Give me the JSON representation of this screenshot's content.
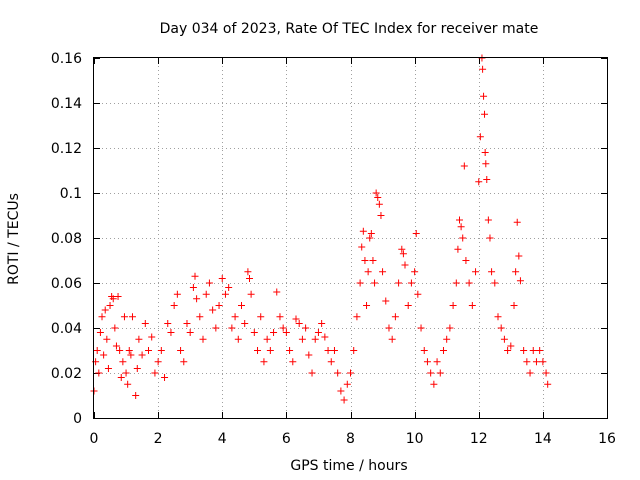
{
  "chart_data": {
    "type": "scatter",
    "title": "Day 034 of 2023, Rate Of TEC Index for receiver mate",
    "xlabel": "GPS time / hours",
    "ylabel": "ROTI / TECUs",
    "xlim": [
      0,
      16
    ],
    "ylim": [
      0,
      0.16
    ],
    "xticks": [
      0,
      2,
      4,
      6,
      8,
      10,
      12,
      14,
      16
    ],
    "yticks": [
      0,
      0.02,
      0.04,
      0.06,
      0.08,
      0.1,
      0.12,
      0.14,
      0.16
    ],
    "grid": true,
    "marker": "plus",
    "color": "#ff0000",
    "series": [
      {
        "name": "ROTI",
        "points": [
          [
            0.0,
            0.012
          ],
          [
            0.05,
            0.025
          ],
          [
            0.1,
            0.03
          ],
          [
            0.15,
            0.02
          ],
          [
            0.2,
            0.038
          ],
          [
            0.25,
            0.045
          ],
          [
            0.3,
            0.028
          ],
          [
            0.35,
            0.048
          ],
          [
            0.4,
            0.035
          ],
          [
            0.45,
            0.022
          ],
          [
            0.5,
            0.05
          ],
          [
            0.55,
            0.054
          ],
          [
            0.6,
            0.053
          ],
          [
            0.65,
            0.04
          ],
          [
            0.7,
            0.032
          ],
          [
            0.75,
            0.054
          ],
          [
            0.8,
            0.03
          ],
          [
            0.85,
            0.018
          ],
          [
            0.9,
            0.025
          ],
          [
            0.95,
            0.045
          ],
          [
            1.0,
            0.02
          ],
          [
            1.05,
            0.015
          ],
          [
            1.1,
            0.03
          ],
          [
            1.15,
            0.028
          ],
          [
            1.2,
            0.045
          ],
          [
            1.3,
            0.01
          ],
          [
            1.35,
            0.022
          ],
          [
            1.4,
            0.035
          ],
          [
            1.5,
            0.028
          ],
          [
            1.6,
            0.042
          ],
          [
            1.7,
            0.03
          ],
          [
            1.8,
            0.036
          ],
          [
            1.9,
            0.02
          ],
          [
            2.0,
            0.025
          ],
          [
            2.1,
            0.03
          ],
          [
            2.2,
            0.018
          ],
          [
            2.3,
            0.042
          ],
          [
            2.4,
            0.038
          ],
          [
            2.5,
            0.05
          ],
          [
            2.6,
            0.055
          ],
          [
            2.7,
            0.03
          ],
          [
            2.8,
            0.025
          ],
          [
            2.9,
            0.042
          ],
          [
            3.0,
            0.038
          ],
          [
            3.1,
            0.058
          ],
          [
            3.15,
            0.063
          ],
          [
            3.2,
            0.053
          ],
          [
            3.3,
            0.045
          ],
          [
            3.4,
            0.035
          ],
          [
            3.5,
            0.055
          ],
          [
            3.6,
            0.06
          ],
          [
            3.7,
            0.048
          ],
          [
            3.8,
            0.04
          ],
          [
            3.9,
            0.05
          ],
          [
            4.0,
            0.062
          ],
          [
            4.1,
            0.055
          ],
          [
            4.2,
            0.058
          ],
          [
            4.3,
            0.04
          ],
          [
            4.4,
            0.045
          ],
          [
            4.5,
            0.035
          ],
          [
            4.6,
            0.05
          ],
          [
            4.7,
            0.042
          ],
          [
            4.8,
            0.065
          ],
          [
            4.85,
            0.062
          ],
          [
            4.9,
            0.055
          ],
          [
            5.0,
            0.038
          ],
          [
            5.1,
            0.03
          ],
          [
            5.2,
            0.045
          ],
          [
            5.3,
            0.025
          ],
          [
            5.4,
            0.035
          ],
          [
            5.5,
            0.03
          ],
          [
            5.6,
            0.038
          ],
          [
            5.7,
            0.056
          ],
          [
            5.8,
            0.045
          ],
          [
            5.9,
            0.04
          ],
          [
            6.0,
            0.038
          ],
          [
            6.1,
            0.03
          ],
          [
            6.2,
            0.025
          ],
          [
            6.3,
            0.044
          ],
          [
            6.4,
            0.042
          ],
          [
            6.5,
            0.035
          ],
          [
            6.6,
            0.04
          ],
          [
            6.7,
            0.028
          ],
          [
            6.8,
            0.02
          ],
          [
            6.9,
            0.035
          ],
          [
            7.0,
            0.038
          ],
          [
            7.1,
            0.042
          ],
          [
            7.2,
            0.036
          ],
          [
            7.3,
            0.03
          ],
          [
            7.4,
            0.025
          ],
          [
            7.5,
            0.03
          ],
          [
            7.6,
            0.02
          ],
          [
            7.7,
            0.012
          ],
          [
            7.8,
            0.008
          ],
          [
            7.9,
            0.015
          ],
          [
            8.0,
            0.02
          ],
          [
            8.1,
            0.03
          ],
          [
            8.2,
            0.045
          ],
          [
            8.3,
            0.06
          ],
          [
            8.35,
            0.076
          ],
          [
            8.4,
            0.083
          ],
          [
            8.45,
            0.07
          ],
          [
            8.5,
            0.05
          ],
          [
            8.55,
            0.065
          ],
          [
            8.6,
            0.08
          ],
          [
            8.65,
            0.082
          ],
          [
            8.7,
            0.07
          ],
          [
            8.75,
            0.06
          ],
          [
            8.8,
            0.1
          ],
          [
            8.85,
            0.098
          ],
          [
            8.9,
            0.095
          ],
          [
            8.95,
            0.09
          ],
          [
            9.0,
            0.065
          ],
          [
            9.1,
            0.052
          ],
          [
            9.2,
            0.04
          ],
          [
            9.3,
            0.035
          ],
          [
            9.4,
            0.045
          ],
          [
            9.5,
            0.06
          ],
          [
            9.6,
            0.075
          ],
          [
            9.65,
            0.073
          ],
          [
            9.7,
            0.068
          ],
          [
            9.8,
            0.05
          ],
          [
            9.9,
            0.06
          ],
          [
            10.0,
            0.065
          ],
          [
            10.05,
            0.082
          ],
          [
            10.1,
            0.055
          ],
          [
            10.2,
            0.04
          ],
          [
            10.3,
            0.03
          ],
          [
            10.4,
            0.025
          ],
          [
            10.5,
            0.02
          ],
          [
            10.6,
            0.015
          ],
          [
            10.7,
            0.025
          ],
          [
            10.8,
            0.02
          ],
          [
            10.9,
            0.03
          ],
          [
            11.0,
            0.035
          ],
          [
            11.1,
            0.04
          ],
          [
            11.2,
            0.05
          ],
          [
            11.3,
            0.06
          ],
          [
            11.35,
            0.075
          ],
          [
            11.4,
            0.088
          ],
          [
            11.45,
            0.085
          ],
          [
            11.5,
            0.08
          ],
          [
            11.55,
            0.112
          ],
          [
            11.6,
            0.07
          ],
          [
            11.7,
            0.06
          ],
          [
            11.8,
            0.05
          ],
          [
            11.9,
            0.065
          ],
          [
            12.0,
            0.105
          ],
          [
            12.05,
            0.125
          ],
          [
            12.1,
            0.16
          ],
          [
            12.12,
            0.155
          ],
          [
            12.15,
            0.143
          ],
          [
            12.18,
            0.135
          ],
          [
            12.2,
            0.118
          ],
          [
            12.22,
            0.113
          ],
          [
            12.25,
            0.106
          ],
          [
            12.3,
            0.088
          ],
          [
            12.35,
            0.08
          ],
          [
            12.4,
            0.065
          ],
          [
            12.5,
            0.06
          ],
          [
            12.6,
            0.045
          ],
          [
            12.7,
            0.04
          ],
          [
            12.8,
            0.035
          ],
          [
            12.9,
            0.03
          ],
          [
            13.0,
            0.032
          ],
          [
            13.1,
            0.05
          ],
          [
            13.15,
            0.065
          ],
          [
            13.2,
            0.087
          ],
          [
            13.25,
            0.072
          ],
          [
            13.3,
            0.061
          ],
          [
            13.4,
            0.03
          ],
          [
            13.5,
            0.025
          ],
          [
            13.6,
            0.02
          ],
          [
            13.7,
            0.03
          ],
          [
            13.8,
            0.025
          ],
          [
            13.9,
            0.03
          ],
          [
            14.0,
            0.025
          ],
          [
            14.1,
            0.02
          ],
          [
            14.15,
            0.015
          ]
        ]
      }
    ]
  }
}
